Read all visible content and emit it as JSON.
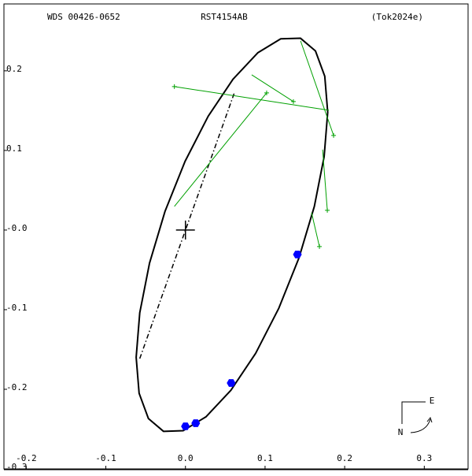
{
  "chart_data": {
    "type": "scatter",
    "title": "RST4154AB",
    "annotations": {
      "left": "WDS 00426-0652",
      "right": "(Tok2024e)"
    },
    "compass": {
      "east": "E",
      "north": "N"
    },
    "xlim": [
      -0.228,
      0.355
    ],
    "ylim": [
      -0.3,
      0.284
    ],
    "xticks": [
      -0.2,
      -0.1,
      {
        "value": 0,
        "label": "0.0"
      },
      0.1,
      0.2,
      0.3
    ],
    "yticks": [
      -0.3,
      -0.2,
      -0.1,
      {
        "value": 0,
        "label": "-0.0"
      },
      0.1,
      0.2
    ],
    "primary": {
      "x": 0,
      "y": 0,
      "color": "#000000"
    },
    "orbit": {
      "color": "#000000",
      "x": [
        0.1444,
        0.1197,
        0.0908,
        0.0597,
        0.0286,
        -0.0005,
        -0.0257,
        -0.0451,
        -0.0574,
        -0.0619,
        -0.0582,
        -0.0465,
        -0.0276,
        -0.0029,
        0.026,
        0.0571,
        0.0882,
        0.1173,
        0.1425,
        0.1619,
        0.1742,
        0.1787,
        0.175,
        0.1633
      ],
      "y": [
        0.241,
        0.2402,
        0.2226,
        0.1894,
        0.143,
        0.0863,
        0.0234,
        -0.0415,
        -0.104,
        -0.1598,
        -0.205,
        -0.2368,
        -0.2528,
        -0.252,
        -0.2344,
        -0.2012,
        -0.1548,
        -0.0981,
        -0.0352,
        0.0297,
        0.0922,
        0.148,
        0.1932,
        0.225
      ]
    },
    "node_line": {
      "color": "#000000",
      "x": [
        -0.0574,
        0.0614
      ],
      "y": [
        -0.1614,
        0.1723
      ]
    },
    "observations": {
      "color": "#00a000",
      "x": [
        -0.0139,
        0.102,
        0.1356,
        0.1861,
        0.1782,
        0.1683
      ],
      "y": [
        0.1802,
        0.1723,
        0.1614,
        0.1188,
        0.0248,
        -0.0208
      ]
    },
    "predicted": {
      "x": [
        0.1802,
        -0.0139,
        0.0832,
        0.1446,
        0.1723,
        0.1584
      ],
      "y": [
        0.1505,
        0.0297,
        0.195,
        0.2376,
        0.101,
        0.0218
      ]
    },
    "measurements": {
      "color": "#0000ff",
      "x": [
        0.1406,
        0.0574,
        0.0129,
        0.0
      ],
      "y": [
        -0.0307,
        -0.1921,
        -0.2426,
        -0.2465
      ]
    }
  }
}
